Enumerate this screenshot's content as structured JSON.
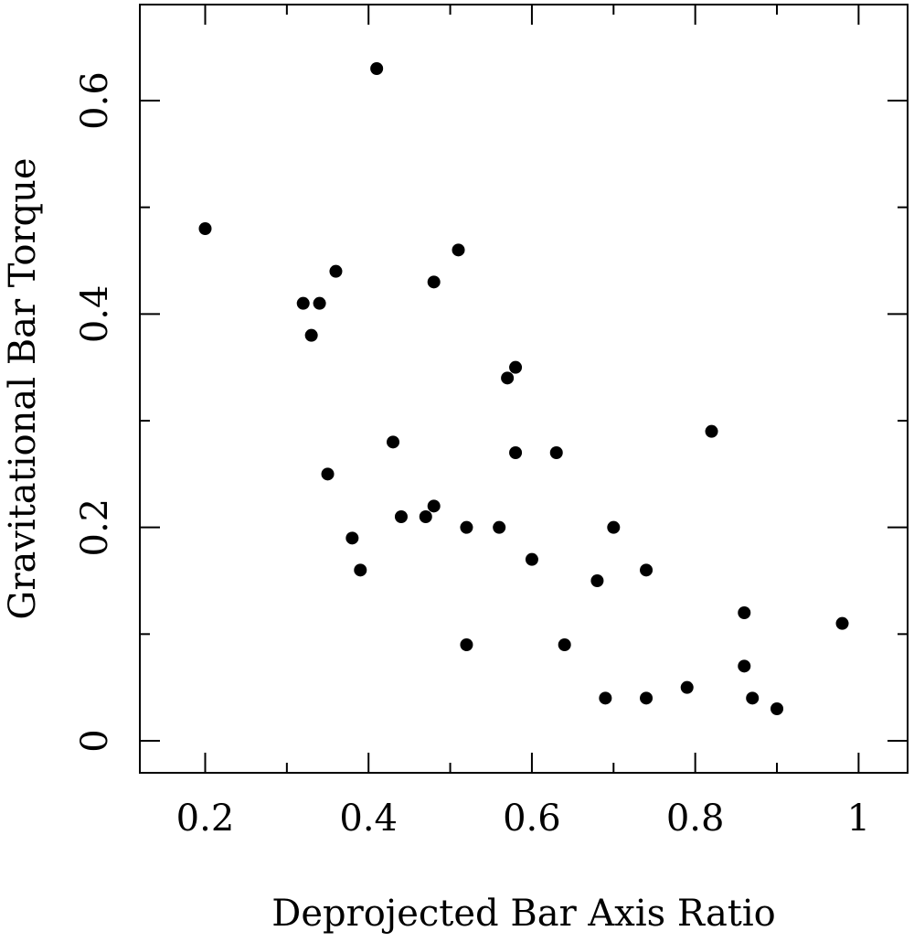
{
  "chart_data": {
    "type": "scatter",
    "xlabel": "Deprojected Bar Axis Ratio",
    "ylabel": "Gravitational Bar Torque",
    "x": [
      0.2,
      0.41,
      0.32,
      0.34,
      0.33,
      0.36,
      0.35,
      0.38,
      0.39,
      0.43,
      0.44,
      0.47,
      0.48,
      0.48,
      0.51,
      0.52,
      0.52,
      0.56,
      0.57,
      0.58,
      0.58,
      0.6,
      0.63,
      0.64,
      0.68,
      0.69,
      0.7,
      0.74,
      0.74,
      0.79,
      0.82,
      0.86,
      0.86,
      0.87,
      0.9,
      0.98
    ],
    "values": [
      0.48,
      0.63,
      0.41,
      0.41,
      0.38,
      0.44,
      0.25,
      0.19,
      0.16,
      0.28,
      0.21,
      0.21,
      0.22,
      0.43,
      0.46,
      0.2,
      0.09,
      0.2,
      0.34,
      0.35,
      0.27,
      0.17,
      0.27,
      0.09,
      0.15,
      0.04,
      0.2,
      0.16,
      0.04,
      0.05,
      0.29,
      0.12,
      0.07,
      0.04,
      0.03,
      0.11
    ],
    "color": "#000000",
    "xlim": [
      0.12,
      1.06
    ],
    "ylim": [
      -0.03,
      0.69
    ],
    "xticks": [
      0.2,
      0.4,
      0.6,
      0.8,
      1
    ],
    "yticks": [
      0,
      0.2,
      0.4,
      0.6
    ],
    "xminorticks": [
      0.3,
      0.5,
      0.7,
      0.9
    ],
    "yminorticks": [
      0.1,
      0.3,
      0.5
    ]
  }
}
